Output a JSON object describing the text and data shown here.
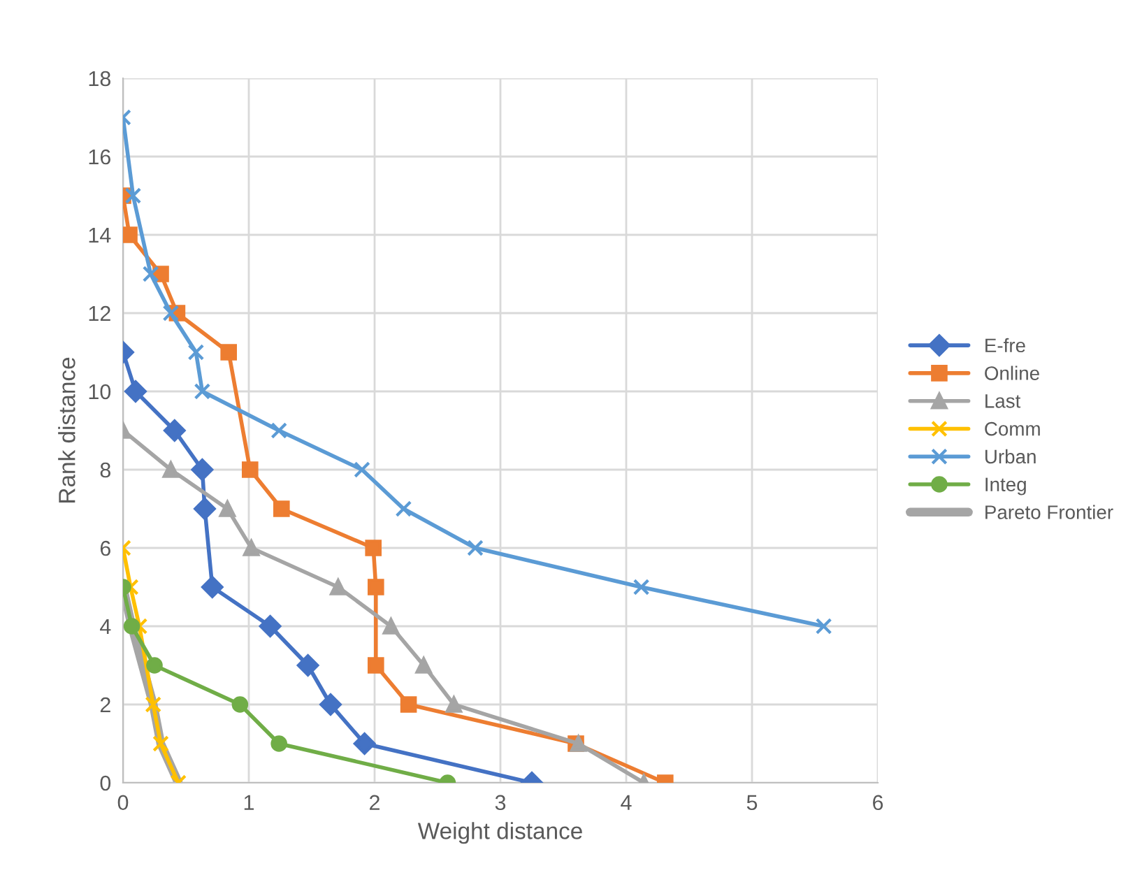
{
  "chart_data": {
    "type": "line",
    "xlabel": "Weight distance",
    "ylabel": "Rank distance",
    "xlim": [
      0,
      6
    ],
    "ylim": [
      0,
      18
    ],
    "xticks": [
      0,
      1,
      2,
      3,
      4,
      5,
      6
    ],
    "yticks": [
      0,
      2,
      4,
      6,
      8,
      10,
      12,
      14,
      16,
      18
    ],
    "grid": true,
    "legend": "right",
    "line_style": "solid",
    "series": [
      {
        "name": "E-fre",
        "color": "#4472c4",
        "marker": "diamond",
        "x": [
          0,
          0.1,
          0.41,
          0.63,
          0.65,
          0.71,
          1.17,
          1.47,
          1.65,
          1.92,
          3.25
        ],
        "values": [
          11,
          10,
          9,
          8,
          7,
          5,
          4,
          3,
          2,
          1,
          0
        ]
      },
      {
        "name": "Online",
        "color": "#ed7d31",
        "marker": "square",
        "x": [
          0,
          0.05,
          0.3,
          0.43,
          0.84,
          1.01,
          1.26,
          1.99,
          2.01,
          2.01,
          2.27,
          3.6,
          4.31
        ],
        "values": [
          15,
          14,
          13,
          12,
          11,
          8,
          7,
          6,
          5,
          3,
          2,
          1,
          0
        ]
      },
      {
        "name": "Last",
        "color": "#a5a5a5",
        "marker": "triangle",
        "x": [
          0,
          0.38,
          0.83,
          1.02,
          1.71,
          2.13,
          2.39,
          2.63,
          3.62,
          4.14
        ],
        "values": [
          9,
          8,
          7,
          6,
          5,
          4,
          3,
          2,
          1,
          0
        ]
      },
      {
        "name": "Comm",
        "color": "#ffc000",
        "marker": "cross",
        "x": [
          0,
          0.06,
          0.13,
          0.24,
          0.3,
          0.44
        ],
        "values": [
          6,
          5,
          4,
          2,
          1,
          0
        ]
      },
      {
        "name": "Urban",
        "color": "#5b9bd5",
        "marker": "cross",
        "x": [
          0,
          0.08,
          0.22,
          0.38,
          0.58,
          0.63,
          1.24,
          1.9,
          2.23,
          2.8,
          4.12,
          5.57
        ],
        "values": [
          17,
          15,
          13,
          12,
          11,
          10,
          9,
          8,
          7,
          6,
          5,
          4
        ]
      },
      {
        "name": "Integ",
        "color": "#70ad47",
        "marker": "circle",
        "x": [
          0,
          0.07,
          0.25,
          0.93,
          1.24,
          2.58
        ],
        "values": [
          5,
          4,
          3,
          2,
          1,
          0
        ]
      },
      {
        "name": "Pareto Frontier",
        "color": "#a5a5a5",
        "marker": "none",
        "x": [
          0,
          0.07,
          0.24,
          0.3,
          0.44
        ],
        "values": [
          5,
          4,
          2,
          1,
          0
        ]
      }
    ]
  }
}
